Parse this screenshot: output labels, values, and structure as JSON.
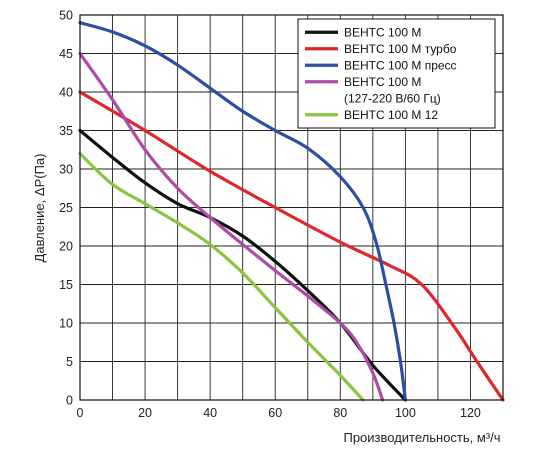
{
  "chart_data": {
    "type": "line",
    "xlabel": "Производительность, м³/ч",
    "ylabel": "Давление, ΔP(Па)",
    "xlim": [
      0,
      130
    ],
    "ylim": [
      0,
      50
    ],
    "x_ticks": [
      0,
      20,
      40,
      60,
      80,
      100,
      120
    ],
    "y_ticks": [
      0,
      5,
      10,
      15,
      20,
      25,
      30,
      35,
      40,
      45,
      50
    ],
    "grid": true,
    "legend_position": "top-right",
    "series": [
      {
        "name": "ВЕНТС 100 М",
        "color": "#111111",
        "points": [
          [
            0,
            35
          ],
          [
            10,
            31.5
          ],
          [
            20,
            28.2
          ],
          [
            30,
            25.5
          ],
          [
            40,
            23.7
          ],
          [
            50,
            21.3
          ],
          [
            60,
            18
          ],
          [
            70,
            14.2
          ],
          [
            80,
            10
          ],
          [
            90,
            4.5
          ],
          [
            100,
            0
          ]
        ]
      },
      {
        "name": "ВЕНТС 100 М турбо",
        "color": "#e0262b",
        "points": [
          [
            0,
            40
          ],
          [
            20,
            35
          ],
          [
            40,
            29.7
          ],
          [
            60,
            25
          ],
          [
            80,
            20.5
          ],
          [
            95,
            17.5
          ],
          [
            105,
            15
          ],
          [
            115,
            9.5
          ],
          [
            122,
            5
          ],
          [
            130,
            0
          ]
        ]
      },
      {
        "name": "ВЕНТС 100 М пресс",
        "color": "#2c4ea3",
        "points": [
          [
            0,
            49
          ],
          [
            10,
            47.8
          ],
          [
            20,
            46
          ],
          [
            30,
            43.5
          ],
          [
            40,
            40.5
          ],
          [
            50,
            37.5
          ],
          [
            60,
            35
          ],
          [
            70,
            32.7
          ],
          [
            80,
            29
          ],
          [
            87,
            25
          ],
          [
            91,
            20.5
          ],
          [
            94,
            15
          ],
          [
            96.5,
            10
          ],
          [
            98.5,
            5
          ],
          [
            100,
            0
          ]
        ]
      },
      {
        "name": "ВЕНТС 100 М",
        "name_line2": "(127-220 В/60 Гц)",
        "color": "#b04aa8",
        "points": [
          [
            0,
            45
          ],
          [
            10,
            39
          ],
          [
            20,
            32.5
          ],
          [
            30,
            27.5
          ],
          [
            40,
            23.7
          ],
          [
            50,
            20.2
          ],
          [
            60,
            16.8
          ],
          [
            70,
            13.5
          ],
          [
            80,
            10
          ],
          [
            85,
            7.5
          ],
          [
            90,
            3.5
          ],
          [
            93,
            0
          ]
        ]
      },
      {
        "name": "ВЕНТС 100 М 12",
        "color": "#8bc53f",
        "points": [
          [
            0,
            32
          ],
          [
            10,
            28
          ],
          [
            20,
            25.5
          ],
          [
            30,
            23
          ],
          [
            40,
            20.2
          ],
          [
            50,
            16.5
          ],
          [
            60,
            12
          ],
          [
            70,
            7.5
          ],
          [
            80,
            3.2
          ],
          [
            87,
            0
          ]
        ]
      }
    ]
  }
}
